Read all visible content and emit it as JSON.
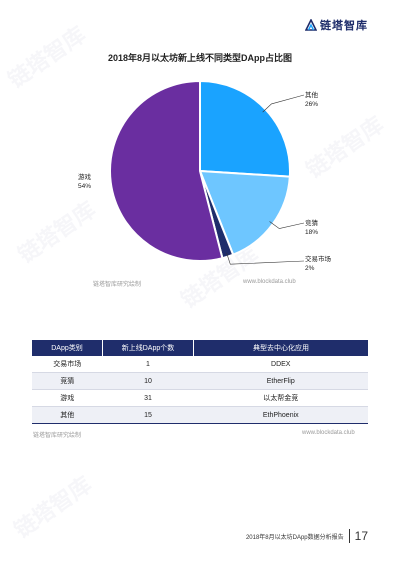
{
  "brand": {
    "name": "链塔智库"
  },
  "chart_data": {
    "type": "pie",
    "title": "2018年8月以太坊新上线不同类型DApp占比图",
    "slices": [
      {
        "label": "其他",
        "value": 26,
        "pct_label": "26%",
        "color": "#1aa3ff"
      },
      {
        "label": "竞猜",
        "value": 18,
        "pct_label": "18%",
        "color": "#6ec6ff"
      },
      {
        "label": "交易市场",
        "value": 2,
        "pct_label": "2%",
        "color": "#1f2d6b"
      },
      {
        "label": "游戏",
        "value": 54,
        "pct_label": "54%",
        "color": "#6a2ea0"
      }
    ]
  },
  "chart_source": {
    "left": "链塔智库研究绘制",
    "right": "www.blockdata.club"
  },
  "table": {
    "headers": [
      "DApp类别",
      "新上线DApp个数",
      "典型去中心化应用"
    ],
    "rows": [
      [
        "交易市场",
        "1",
        "DDEX"
      ],
      [
        "竞猜",
        "10",
        "EtherFlip"
      ],
      [
        "游戏",
        "31",
        "以太帮金竞"
      ],
      [
        "其他",
        "15",
        "EthPhoenix"
      ]
    ]
  },
  "table_source": {
    "left": "链塔智库研究绘制",
    "right": "www.blockdata.club"
  },
  "footer": {
    "text": "2018年8月以太坊DApp数据分析报告",
    "page": "17"
  },
  "watermark": {
    "text": "链塔智库"
  }
}
